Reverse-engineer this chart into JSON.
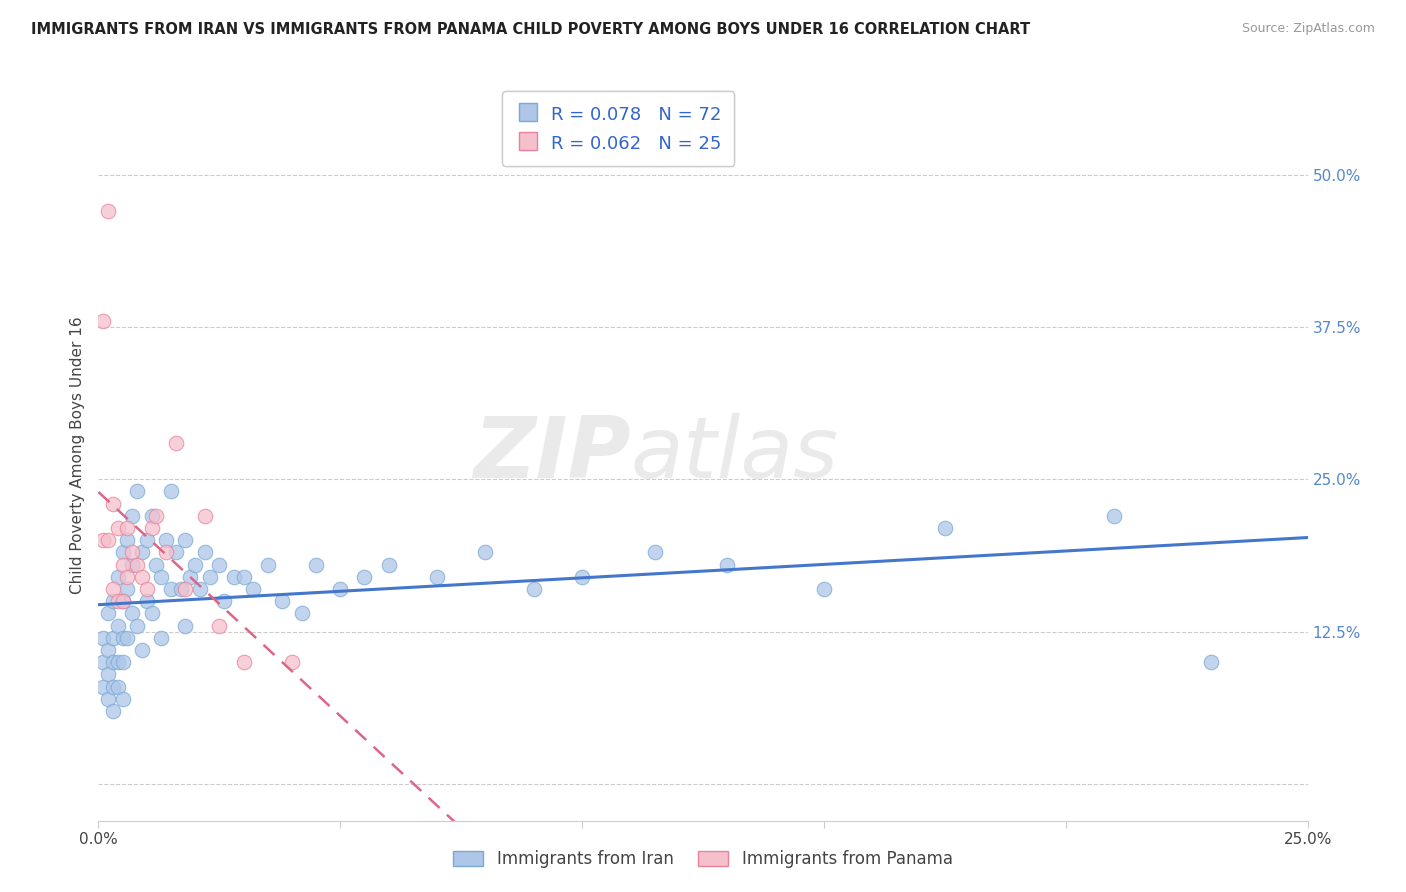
{
  "title": "IMMIGRANTS FROM IRAN VS IMMIGRANTS FROM PANAMA CHILD POVERTY AMONG BOYS UNDER 16 CORRELATION CHART",
  "source": "Source: ZipAtlas.com",
  "ylabel": "Child Poverty Among Boys Under 16",
  "xlim": [
    0.0,
    0.25
  ],
  "ylim": [
    -0.03,
    0.57
  ],
  "xticks": [
    0.0,
    0.05,
    0.1,
    0.15,
    0.2,
    0.25
  ],
  "xticklabels": [
    "0.0%",
    "",
    "",
    "",
    "",
    "25.0%"
  ],
  "yticks": [
    0.0,
    0.125,
    0.25,
    0.375,
    0.5
  ],
  "yticklabels_left": [
    "",
    "",
    "",
    "",
    ""
  ],
  "yticklabels_right": [
    "",
    "12.5%",
    "25.0%",
    "37.5%",
    "50.0%"
  ],
  "iran_color": "#aec6e8",
  "iran_color_edge": "#7aaad4",
  "panama_color": "#f5bfcc",
  "panama_color_edge": "#e8829a",
  "iran_R": 0.078,
  "iran_N": 72,
  "panama_R": 0.062,
  "panama_N": 25,
  "iran_line_color": "#4477cc",
  "panama_line_color": "#dd6688",
  "iran_scatter_x": [
    0.001,
    0.001,
    0.001,
    0.002,
    0.002,
    0.002,
    0.002,
    0.003,
    0.003,
    0.003,
    0.003,
    0.003,
    0.004,
    0.004,
    0.004,
    0.004,
    0.005,
    0.005,
    0.005,
    0.005,
    0.005,
    0.006,
    0.006,
    0.006,
    0.007,
    0.007,
    0.007,
    0.008,
    0.008,
    0.009,
    0.009,
    0.01,
    0.01,
    0.011,
    0.011,
    0.012,
    0.013,
    0.013,
    0.014,
    0.015,
    0.015,
    0.016,
    0.017,
    0.018,
    0.018,
    0.019,
    0.02,
    0.021,
    0.022,
    0.023,
    0.025,
    0.026,
    0.028,
    0.03,
    0.032,
    0.035,
    0.038,
    0.042,
    0.045,
    0.05,
    0.055,
    0.06,
    0.07,
    0.08,
    0.09,
    0.1,
    0.115,
    0.13,
    0.15,
    0.175,
    0.21,
    0.23
  ],
  "iran_scatter_y": [
    0.1,
    0.12,
    0.08,
    0.14,
    0.11,
    0.09,
    0.07,
    0.15,
    0.12,
    0.1,
    0.08,
    0.06,
    0.17,
    0.13,
    0.1,
    0.08,
    0.19,
    0.15,
    0.12,
    0.1,
    0.07,
    0.2,
    0.16,
    0.12,
    0.22,
    0.18,
    0.14,
    0.24,
    0.13,
    0.19,
    0.11,
    0.2,
    0.15,
    0.22,
    0.14,
    0.18,
    0.17,
    0.12,
    0.2,
    0.24,
    0.16,
    0.19,
    0.16,
    0.2,
    0.13,
    0.17,
    0.18,
    0.16,
    0.19,
    0.17,
    0.18,
    0.15,
    0.17,
    0.17,
    0.16,
    0.18,
    0.15,
    0.14,
    0.18,
    0.16,
    0.17,
    0.18,
    0.17,
    0.19,
    0.16,
    0.17,
    0.19,
    0.18,
    0.16,
    0.21,
    0.22,
    0.1
  ],
  "panama_scatter_x": [
    0.001,
    0.001,
    0.002,
    0.002,
    0.003,
    0.003,
    0.004,
    0.004,
    0.005,
    0.005,
    0.006,
    0.006,
    0.007,
    0.008,
    0.009,
    0.01,
    0.011,
    0.012,
    0.014,
    0.016,
    0.018,
    0.022,
    0.025,
    0.03,
    0.04
  ],
  "panama_scatter_y": [
    0.38,
    0.2,
    0.47,
    0.2,
    0.23,
    0.16,
    0.21,
    0.15,
    0.18,
    0.15,
    0.21,
    0.17,
    0.19,
    0.18,
    0.17,
    0.16,
    0.21,
    0.22,
    0.19,
    0.28,
    0.16,
    0.22,
    0.13,
    0.1,
    0.1
  ],
  "watermark_line1": "ZIP",
  "watermark_line2": "atlas"
}
